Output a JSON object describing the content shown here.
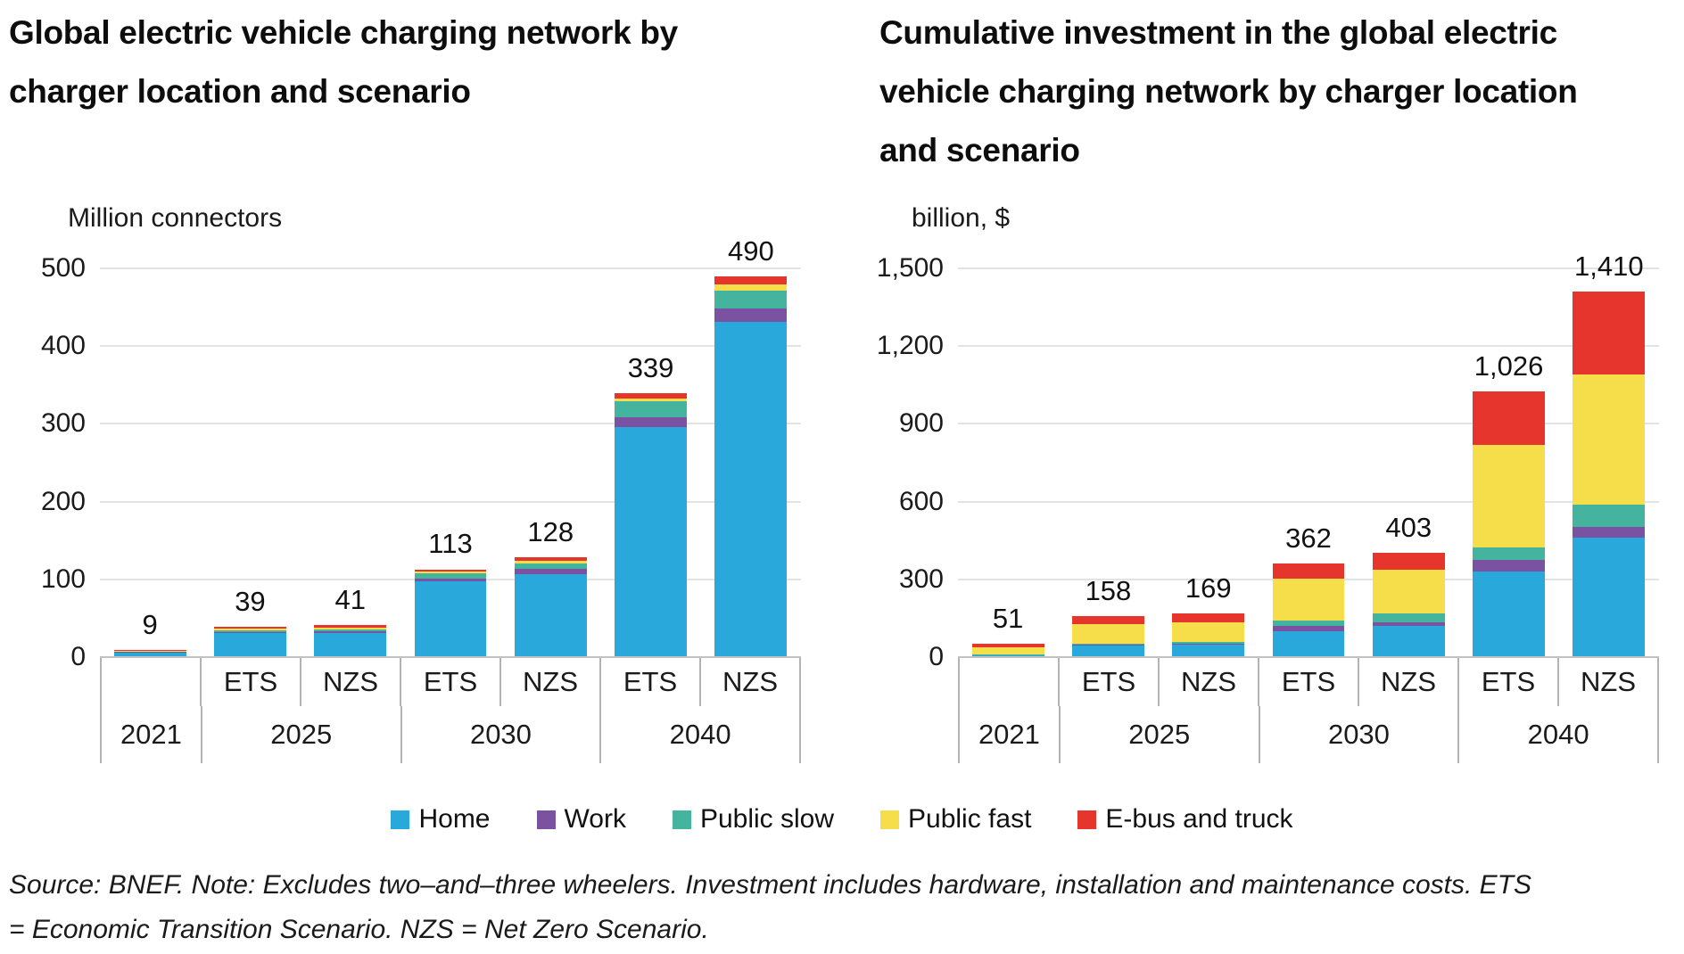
{
  "source": {
    "lines": [
      "Source: BNEF. Note: Excludes two–and–three wheelers. Investment includes hardware, installation and maintenance costs. ETS",
      "= Economic Transition Scenario. NZS = Net Zero Scenario."
    ]
  },
  "legend": {
    "items": [
      {
        "label": "Home",
        "color": "#29A8DC"
      },
      {
        "label": "Work",
        "color": "#7A52A1"
      },
      {
        "label": "Public slow",
        "color": "#44B49E"
      },
      {
        "label": "Public fast",
        "color": "#F5DE4A"
      },
      {
        "label": "E-bus and truck",
        "color": "#E6352C"
      }
    ]
  },
  "chart_data": [
    {
      "type": "bar",
      "stacked": true,
      "title": "Global electric vehicle charging network by charger location and scenario",
      "title_lines": [
        "Global electric vehicle charging network by",
        "charger location and scenario"
      ],
      "unit_label": "Million connectors",
      "ylabel": "Million connectors",
      "ylim": [
        0,
        500
      ],
      "grid": true,
      "yticks": [
        {
          "value": 0,
          "label": "0"
        },
        {
          "value": 100,
          "label": "100"
        },
        {
          "value": 200,
          "label": "200"
        },
        {
          "value": 300,
          "label": "300"
        },
        {
          "value": 400,
          "label": "400"
        },
        {
          "value": 500,
          "label": "500"
        }
      ],
      "categories": [
        "2021",
        "2025 ETS",
        "2025 NZS",
        "2030 ETS",
        "2030 NZS",
        "2040 ETS",
        "2040 NZS"
      ],
      "totals": [
        9,
        39,
        41,
        113,
        128,
        339,
        490
      ],
      "bar_labels": [
        "9",
        "39",
        "41",
        "113",
        "128",
        "339",
        "490"
      ],
      "series": [
        {
          "name": "Home",
          "color": "#29A8DC",
          "values": [
            6,
            31,
            31,
            97,
            107,
            296,
            431
          ]
        },
        {
          "name": "Work",
          "color": "#7A52A1",
          "values": [
            1,
            1,
            2,
            4,
            6,
            13,
            17
          ]
        },
        {
          "name": "Public slow",
          "color": "#44B49E",
          "values": [
            0.5,
            3,
            3,
            7,
            8,
            20,
            23
          ]
        },
        {
          "name": "Public fast",
          "color": "#F5DE4A",
          "values": [
            0.5,
            2,
            2,
            2,
            3,
            4,
            8
          ]
        },
        {
          "name": "E-bus and truck",
          "color": "#E6352C",
          "values": [
            1,
            2,
            3,
            3,
            4,
            6,
            11
          ]
        }
      ],
      "x_axis": {
        "scenario_row": [
          "",
          "ETS",
          "NZS",
          "ETS",
          "NZS",
          "ETS",
          "NZS"
        ],
        "year_groups": [
          {
            "label": "2021",
            "span": 1
          },
          {
            "label": "2025",
            "span": 2
          },
          {
            "label": "2030",
            "span": 2
          },
          {
            "label": "2040",
            "span": 2
          }
        ]
      },
      "legend_position": "bottom-shared"
    },
    {
      "type": "bar",
      "stacked": true,
      "title": "Cumulative investment in the global electric vehicle charging network by charger location and scenario",
      "title_lines": [
        "Cumulative investment in the global electric",
        "vehicle charging network by charger location",
        "and scenario"
      ],
      "unit_label": "billion, $",
      "ylabel": "billion, $",
      "ylim": [
        0,
        1500
      ],
      "grid": true,
      "yticks": [
        {
          "value": 0,
          "label": "0"
        },
        {
          "value": 300,
          "label": "300"
        },
        {
          "value": 600,
          "label": "600"
        },
        {
          "value": 900,
          "label": "900"
        },
        {
          "value": 1200,
          "label": "1,200"
        },
        {
          "value": 1500,
          "label": "1,500"
        }
      ],
      "categories": [
        "2021",
        "2025 ETS",
        "2025 NZS",
        "2030 ETS",
        "2030 NZS",
        "2040 ETS",
        "2040 NZS"
      ],
      "totals": [
        51,
        158,
        169,
        362,
        403,
        1026,
        1410
      ],
      "bar_labels": [
        "51",
        "158",
        "169",
        "362",
        "403",
        "1,026",
        "1,410"
      ],
      "series": [
        {
          "name": "Home",
          "color": "#29A8DC",
          "values": [
            6,
            45,
            48,
            100,
            120,
            330,
            460
          ]
        },
        {
          "name": "Work",
          "color": "#7A52A1",
          "values": [
            1,
            3,
            4,
            20,
            14,
            44,
            42
          ]
        },
        {
          "name": "Public slow",
          "color": "#44B49E",
          "values": [
            4,
            5,
            6,
            20,
            34,
            50,
            85
          ]
        },
        {
          "name": "Public fast",
          "color": "#F5DE4A",
          "values": [
            28,
            75,
            76,
            162,
            170,
            396,
            503
          ]
        },
        {
          "name": "E-bus and truck",
          "color": "#E6352C",
          "values": [
            12,
            30,
            35,
            60,
            65,
            206,
            320
          ]
        }
      ],
      "x_axis": {
        "scenario_row": [
          "",
          "ETS",
          "NZS",
          "ETS",
          "NZS",
          "ETS",
          "NZS"
        ],
        "year_groups": [
          {
            "label": "2021",
            "span": 1
          },
          {
            "label": "2025",
            "span": 2
          },
          {
            "label": "2030",
            "span": 2
          },
          {
            "label": "2040",
            "span": 2
          }
        ]
      },
      "legend_position": "bottom-shared"
    }
  ]
}
